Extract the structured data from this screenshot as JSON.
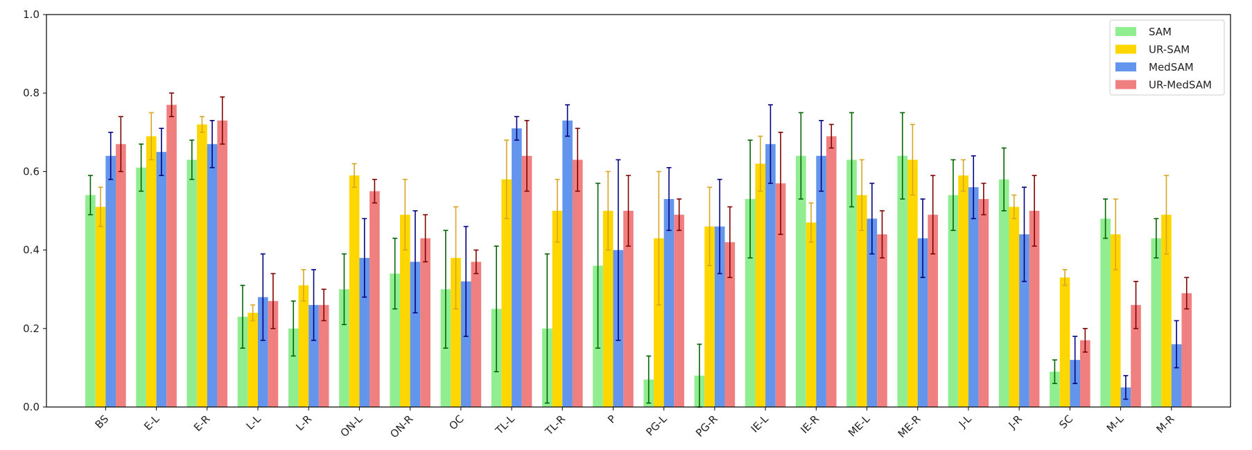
{
  "chart_data": {
    "type": "bar",
    "title": "",
    "xlabel": "",
    "ylabel": "",
    "ylim": [
      0.0,
      1.0
    ],
    "yticks": [
      "0.0",
      "0.2",
      "0.4",
      "0.6",
      "0.8",
      "1.0"
    ],
    "grid": false,
    "legend_position": "top-right",
    "categories": [
      "BS",
      "E-L",
      "E-R",
      "L-L",
      "L-R",
      "ON-L",
      "ON-R",
      "OC",
      "TL-L",
      "TL-R",
      "P",
      "PG-L",
      "PG-R",
      "IE-L",
      "IE-R",
      "ME-L",
      "ME-R",
      "J-L",
      "J-R",
      "SC",
      "M-L",
      "M-R"
    ],
    "series": [
      {
        "name": "SAM",
        "color": "#90EE90",
        "error_color": "#006400",
        "values": [
          0.54,
          0.61,
          0.63,
          0.23,
          0.2,
          0.3,
          0.34,
          0.3,
          0.25,
          0.2,
          0.36,
          0.07,
          0.08,
          0.53,
          0.64,
          0.63,
          0.64,
          0.54,
          0.58,
          0.09,
          0.48,
          0.43
        ],
        "errors": [
          0.05,
          0.06,
          0.05,
          0.08,
          0.07,
          0.09,
          0.09,
          0.15,
          0.16,
          0.19,
          0.21,
          0.06,
          0.08,
          0.15,
          0.11,
          0.12,
          0.11,
          0.09,
          0.08,
          0.03,
          0.05,
          0.05
        ]
      },
      {
        "name": "UR-SAM",
        "color": "#FFD700",
        "error_color": "#DAA520",
        "values": [
          0.51,
          0.69,
          0.72,
          0.24,
          0.31,
          0.59,
          0.49,
          0.38,
          0.58,
          0.5,
          0.5,
          0.43,
          0.46,
          0.62,
          0.47,
          0.54,
          0.63,
          0.59,
          0.51,
          0.33,
          0.44,
          0.49
        ],
        "errors": [
          0.05,
          0.06,
          0.02,
          0.02,
          0.04,
          0.03,
          0.09,
          0.13,
          0.1,
          0.08,
          0.1,
          0.17,
          0.1,
          0.07,
          0.05,
          0.09,
          0.09,
          0.04,
          0.03,
          0.02,
          0.09,
          0.1
        ]
      },
      {
        "name": "MedSAM",
        "color": "#6495ED",
        "error_color": "#000080",
        "values": [
          0.64,
          0.65,
          0.67,
          0.28,
          0.26,
          0.38,
          0.37,
          0.32,
          0.71,
          0.73,
          0.4,
          0.53,
          0.46,
          0.67,
          0.64,
          0.48,
          0.43,
          0.56,
          0.44,
          0.12,
          0.05,
          0.16
        ],
        "errors": [
          0.06,
          0.06,
          0.06,
          0.11,
          0.09,
          0.1,
          0.13,
          0.14,
          0.03,
          0.04,
          0.23,
          0.08,
          0.12,
          0.1,
          0.09,
          0.09,
          0.1,
          0.08,
          0.12,
          0.06,
          0.03,
          0.06
        ]
      },
      {
        "name": "UR-MedSAM",
        "color": "#F08080",
        "error_color": "#800000",
        "values": [
          0.67,
          0.77,
          0.73,
          0.27,
          0.26,
          0.55,
          0.43,
          0.37,
          0.64,
          0.63,
          0.5,
          0.49,
          0.42,
          0.57,
          0.69,
          0.44,
          0.49,
          0.53,
          0.5,
          0.17,
          0.26,
          0.29
        ],
        "errors": [
          0.07,
          0.03,
          0.06,
          0.07,
          0.04,
          0.03,
          0.06,
          0.03,
          0.09,
          0.08,
          0.09,
          0.04,
          0.09,
          0.13,
          0.03,
          0.06,
          0.1,
          0.04,
          0.09,
          0.03,
          0.06,
          0.04
        ]
      }
    ]
  }
}
